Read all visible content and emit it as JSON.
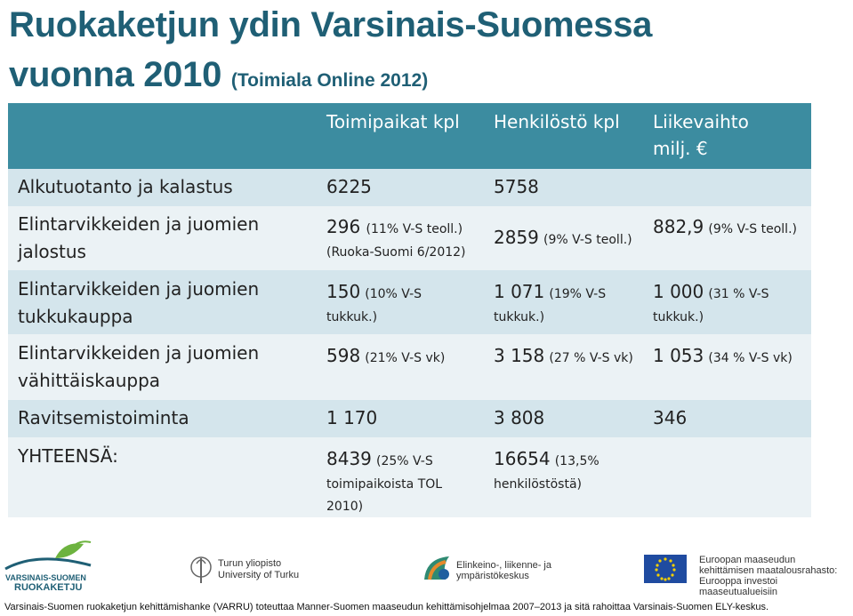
{
  "title": {
    "main_line1": "Ruokaketjun ydin Varsinais-Suomessa",
    "main_line2": "vuonna 2010",
    "source": "(Toimiala Online 2012)"
  },
  "table": {
    "headers": [
      "Toimipaikat kpl",
      "Henkilöstö kpl",
      "Liikevaihto milj. €"
    ],
    "rows": [
      {
        "label": "Alkutuotanto ja kalastus",
        "toimipaikat": {
          "value": "6225",
          "note": ""
        },
        "henkilosto": {
          "value": "5758",
          "note": ""
        },
        "liikevaihto": {
          "value": "",
          "note": ""
        }
      },
      {
        "label": "Elintarvikkeiden ja juomien jalostus",
        "toimipaikat": {
          "value": "296",
          "note": "(11% V-S teoll.)",
          "note2": "(Ruoka-Suomi 6/2012)"
        },
        "henkilosto": {
          "value": "2859",
          "note": "(9% V-S teoll.)"
        },
        "liikevaihto": {
          "value": "882,9",
          "note": "(9% V-S teoll.)"
        }
      },
      {
        "label": "Elintarvikkeiden ja juomien tukkukauppa",
        "toimipaikat": {
          "value": "150",
          "note": "(10% V-S tukkuk.)"
        },
        "henkilosto": {
          "value": "1 071",
          "note": "(19% V-S tukkuk.)"
        },
        "liikevaihto": {
          "value": "1 000",
          "note": "(31 % V-S tukkuk.)"
        }
      },
      {
        "label": "Elintarvikkeiden ja juomien vähittäiskauppa",
        "toimipaikat": {
          "value": "598",
          "note": "(21% V-S vk)"
        },
        "henkilosto": {
          "value": "3 158",
          "note": "(27 % V-S vk)"
        },
        "liikevaihto": {
          "value": "1 053",
          "note": "(34 % V-S vk)"
        }
      },
      {
        "label": "Ravitsemistoiminta",
        "toimipaikat": {
          "value": "1 170",
          "note": ""
        },
        "henkilosto": {
          "value": "3 808",
          "note": ""
        },
        "liikevaihto": {
          "value": "346",
          "note": ""
        }
      },
      {
        "label": "YHTEENSÄ:",
        "toimipaikat": {
          "value": "8439",
          "note": "(25% V-S toimipaikoista TOL 2010)"
        },
        "henkilosto": {
          "value": "16654",
          "note": "(13,5% henkilöstöstä)"
        },
        "liikevaihto": {
          "value": "",
          "note": ""
        }
      }
    ]
  },
  "logos": {
    "vs_ruokaketju_line1": "VARSINAIS-SUOMEN",
    "vs_ruokaketju_line2": "RUOKAKETJU",
    "turku_line1": "Turun yliopisto",
    "turku_line2": "University of Turku",
    "ely_line1": "Elinkeino-, liikenne- ja",
    "ely_line2": "ympäristökeskus",
    "eu_line1": "Euroopan maaseudun",
    "eu_line2": "kehittämisen maatalousrahasto:",
    "eu_line3": "Eurooppa investoi maaseutualueisiin"
  },
  "footer": "Varsinais-Suomen ruokaketjun kehittämishanke (VARRU) toteuttaa Manner-Suomen maaseudun  kehittämisohjelmaa  2007–2013 ja sitä rahoittaa Varsinais-Suomen ELY-keskus.",
  "colors": {
    "title": "#1f5f75",
    "header_bg": "#3c8ca0",
    "row_dark": "#d4e5ec",
    "row_light": "#ebf2f5"
  }
}
